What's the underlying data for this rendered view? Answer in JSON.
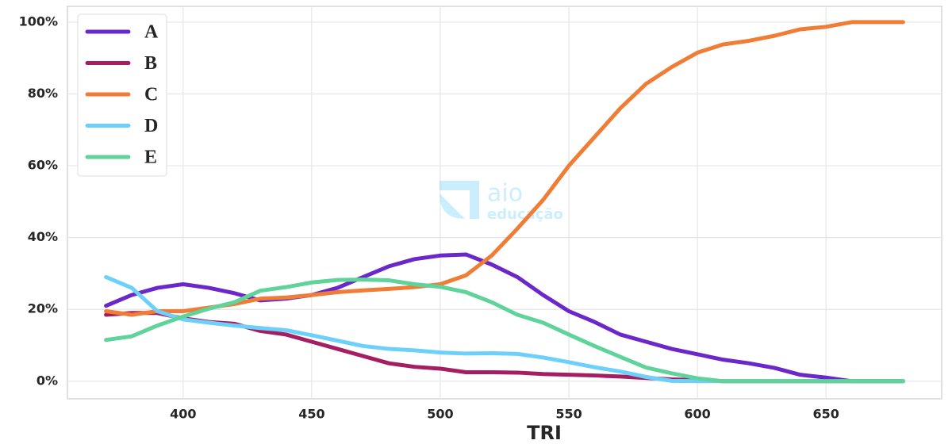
{
  "chart_data": {
    "type": "line",
    "x_label": "TRI",
    "annotations": [
      "aio",
      "educação"
    ],
    "x": [
      370,
      380,
      390,
      400,
      410,
      420,
      430,
      440,
      450,
      460,
      470,
      480,
      490,
      500,
      510,
      520,
      530,
      540,
      550,
      560,
      570,
      580,
      590,
      600,
      610,
      620,
      630,
      640,
      650,
      660,
      670,
      680
    ],
    "series": [
      {
        "name": "A",
        "color": "#6a27c9",
        "values": [
          21,
          24,
          26,
          27,
          26,
          24.5,
          22.5,
          23,
          24,
          26,
          29,
          32,
          34,
          35,
          35.3,
          32.5,
          29,
          24,
          19.5,
          16.5,
          13,
          11,
          9,
          7.5,
          6,
          5,
          3.7,
          1.8,
          1,
          0,
          0,
          0
        ]
      },
      {
        "name": "B",
        "color": "#a61e62",
        "values": [
          18.5,
          19,
          19,
          17.5,
          16.5,
          16,
          14,
          13,
          11,
          9,
          7,
          5,
          4,
          3.5,
          2.5,
          2.5,
          2.4,
          2,
          1.8,
          1.6,
          1.3,
          0.9,
          0.5,
          0.3,
          0,
          0,
          0,
          0,
          0,
          0,
          0,
          0
        ]
      },
      {
        "name": "C",
        "color": "#f07d35",
        "values": [
          19.5,
          18.5,
          19.5,
          19.5,
          20.5,
          21.5,
          23,
          23.3,
          24,
          24.8,
          25.3,
          25.7,
          26.2,
          27,
          29.5,
          35,
          42.5,
          50.5,
          60,
          68,
          76,
          82.8,
          87.5,
          91.5,
          93.8,
          94.8,
          96.2,
          98,
          98.7,
          100,
          100,
          100
        ]
      },
      {
        "name": "D",
        "color": "#6dd0fb",
        "values": [
          29,
          26,
          19.5,
          17.2,
          16.3,
          15.5,
          14.8,
          14.2,
          12.8,
          11.3,
          9.8,
          9,
          8.6,
          8,
          7.7,
          7.8,
          7.6,
          6.6,
          5.3,
          3.9,
          2.7,
          1.2,
          0.1,
          0,
          0,
          0,
          0,
          0,
          0,
          0,
          0,
          0
        ]
      },
      {
        "name": "E",
        "color": "#5fd39a",
        "values": [
          11.5,
          12.5,
          15.5,
          18,
          20.2,
          22,
          25.2,
          26.2,
          27.5,
          28.2,
          28.3,
          28.1,
          27,
          26.3,
          24.8,
          22,
          18.5,
          16.3,
          13,
          9.8,
          6.8,
          3.8,
          2.2,
          0.8,
          0,
          0,
          0,
          0,
          0,
          0,
          0,
          0
        ]
      }
    ],
    "xlim": [
      355,
      695
    ],
    "ylim": [
      -4.9,
      104.4
    ],
    "xticks": [
      400,
      450,
      500,
      550,
      600,
      650
    ],
    "yticks": [
      {
        "value": 0,
        "label": "0%"
      },
      {
        "value": 20,
        "label": "20%"
      },
      {
        "value": 40,
        "label": "40%"
      },
      {
        "value": 60,
        "label": "60%"
      },
      {
        "value": 80,
        "label": "80%"
      },
      {
        "value": 100,
        "label": "100%"
      }
    ],
    "grid": true,
    "legend": "upper-left"
  }
}
